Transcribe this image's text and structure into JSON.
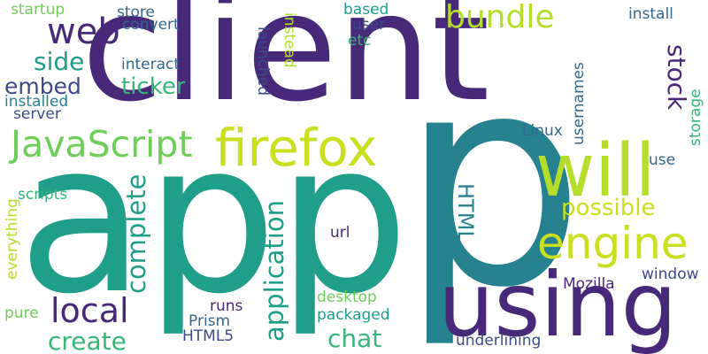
{
  "colors": {
    "dark_purple": "#482878",
    "indigo": "#3e4989",
    "blue": "#31688e",
    "teal": "#26828e",
    "sea": "#1f9e89",
    "green": "#35b779",
    "lime": "#6ece58",
    "yellow_green": "#b5de2b",
    "yellow": "#c8e020"
  },
  "words": {
    "app": "app",
    "client": "client",
    "using": "using",
    "p": "p",
    "firefox": "firefox",
    "will": "will",
    "engine": "engine",
    "javascript": "JavaScript",
    "web": "web",
    "bundle": "bundle",
    "local": "local",
    "create": "create",
    "chat": "chat",
    "side": "side",
    "embed": "embed",
    "ticker": "ticker",
    "complete": "complete",
    "application": "application",
    "stock": "stock",
    "html": "HTML",
    "possible": "possible",
    "startup": "startup",
    "store": "store",
    "convert": "convert",
    "based": "based",
    "user": "user",
    "etc": "etc",
    "install": "install",
    "interact": "interact",
    "installed": "installed",
    "server": "server",
    "launched": "launched",
    "instead": "instead",
    "usernames": "usernames",
    "storage": "storage",
    "linux": "Linux",
    "use": "use",
    "scripts": "scripts",
    "everything": "everything",
    "url": "url",
    "window": "window",
    "mozilla": "Mozilla",
    "desktop": "desktop",
    "packaged": "packaged",
    "runs": "runs",
    "prism": "Prism",
    "html5": "HTML5",
    "pure": "pure",
    "underlining": "underlining"
  }
}
